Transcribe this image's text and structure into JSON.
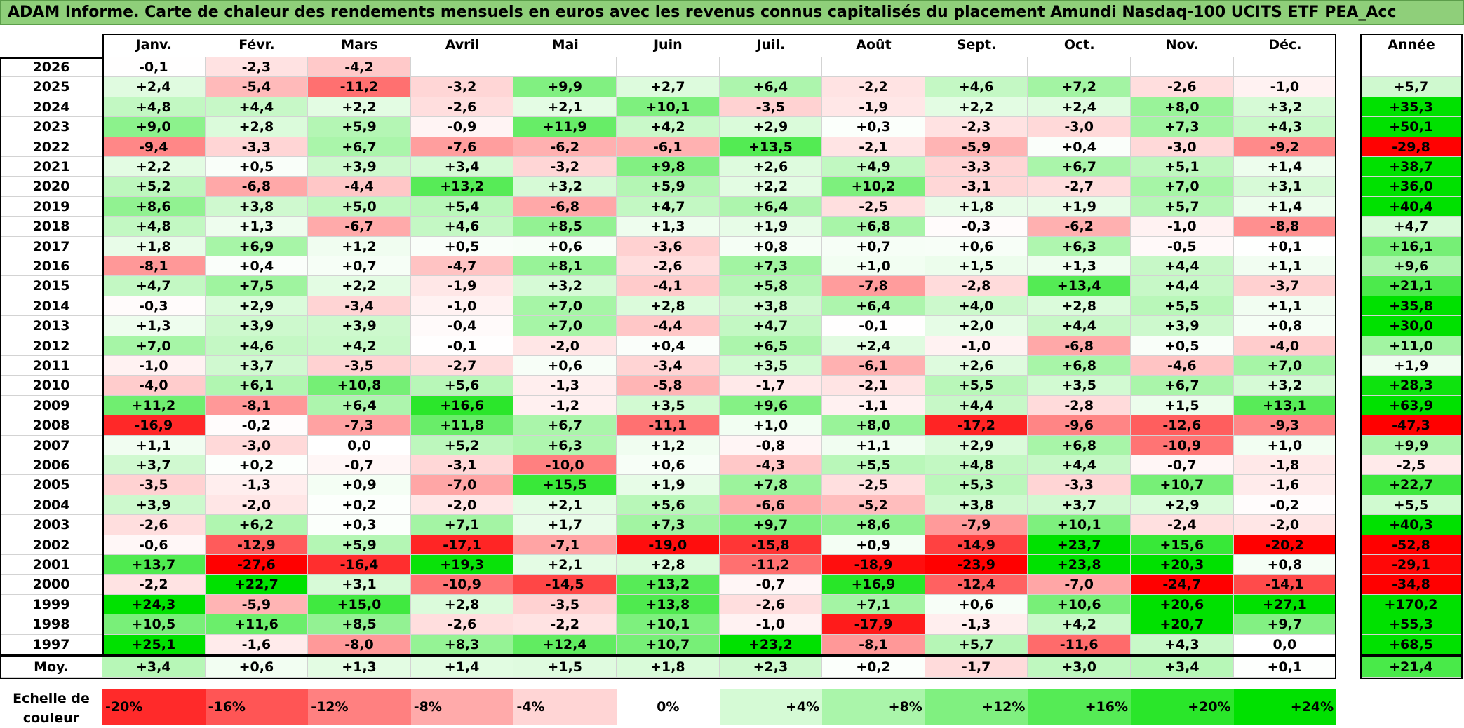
{
  "title": "ADAM Informe. Carte de chaleur des rendements mensuels en euros avec les revenus connus capitalisés du placement Amundi Nasdaq-100 UCITS ETF PEA_Acc",
  "chart_data": {
    "type": "heatmap",
    "months": [
      "Janv.",
      "Févr.",
      "Mars",
      "Avril",
      "Mai",
      "Juin",
      "Juil.",
      "Août",
      "Sept.",
      "Oct.",
      "Nov.",
      "Déc."
    ],
    "year_header": "Année",
    "rows": [
      {
        "year": "2026",
        "values": [
          "-0,1",
          "-2,3",
          "-4,2",
          "",
          "",
          "",
          "",
          "",
          "",
          "",
          "",
          ""
        ],
        "annual": ""
      },
      {
        "year": "2025",
        "values": [
          "+2,4",
          "-5,4",
          "-11,2",
          "-3,2",
          "+9,9",
          "+2,7",
          "+6,4",
          "-2,2",
          "+4,6",
          "+7,2",
          "-2,6",
          "-1,0"
        ],
        "annual": "+5,7"
      },
      {
        "year": "2024",
        "values": [
          "+4,8",
          "+4,4",
          "+2,2",
          "-2,6",
          "+2,1",
          "+10,1",
          "-3,5",
          "-1,9",
          "+2,2",
          "+2,4",
          "+8,0",
          "+3,2"
        ],
        "annual": "+35,3"
      },
      {
        "year": "2023",
        "values": [
          "+9,0",
          "+2,8",
          "+5,9",
          "-0,9",
          "+11,9",
          "+4,2",
          "+2,9",
          "+0,3",
          "-2,3",
          "-3,0",
          "+7,3",
          "+4,3"
        ],
        "annual": "+50,1"
      },
      {
        "year": "2022",
        "values": [
          "-9,4",
          "-3,3",
          "+6,7",
          "-7,6",
          "-6,2",
          "-6,1",
          "+13,5",
          "-2,1",
          "-5,9",
          "+0,4",
          "-3,0",
          "-9,2"
        ],
        "annual": "-29,8"
      },
      {
        "year": "2021",
        "values": [
          "+2,2",
          "+0,5",
          "+3,9",
          "+3,4",
          "-3,2",
          "+9,8",
          "+2,6",
          "+4,9",
          "-3,3",
          "+6,7",
          "+5,1",
          "+1,4"
        ],
        "annual": "+38,7"
      },
      {
        "year": "2020",
        "values": [
          "+5,2",
          "-6,8",
          "-4,4",
          "+13,2",
          "+3,2",
          "+5,9",
          "+2,2",
          "+10,2",
          "-3,1",
          "-2,7",
          "+7,0",
          "+3,1"
        ],
        "annual": "+36,0"
      },
      {
        "year": "2019",
        "values": [
          "+8,6",
          "+3,8",
          "+5,0",
          "+5,4",
          "-6,8",
          "+4,7",
          "+6,4",
          "-2,5",
          "+1,8",
          "+1,9",
          "+5,7",
          "+1,4"
        ],
        "annual": "+40,4"
      },
      {
        "year": "2018",
        "values": [
          "+4,8",
          "+1,3",
          "-6,7",
          "+4,6",
          "+8,5",
          "+1,3",
          "+1,9",
          "+6,8",
          "-0,3",
          "-6,2",
          "-1,0",
          "-8,8"
        ],
        "annual": "+4,7"
      },
      {
        "year": "2017",
        "values": [
          "+1,8",
          "+6,9",
          "+1,2",
          "+0,5",
          "+0,6",
          "-3,6",
          "+0,8",
          "+0,7",
          "+0,6",
          "+6,3",
          "-0,5",
          "+0,1"
        ],
        "annual": "+16,1"
      },
      {
        "year": "2016",
        "values": [
          "-8,1",
          "+0,4",
          "+0,7",
          "-4,7",
          "+8,1",
          "-2,6",
          "+7,3",
          "+1,0",
          "+1,5",
          "+1,3",
          "+4,4",
          "+1,1"
        ],
        "annual": "+9,6"
      },
      {
        "year": "2015",
        "values": [
          "+4,7",
          "+7,5",
          "+2,2",
          "-1,9",
          "+3,2",
          "-4,1",
          "+5,8",
          "-7,8",
          "-2,8",
          "+13,4",
          "+4,4",
          "-3,7"
        ],
        "annual": "+21,1"
      },
      {
        "year": "2014",
        "values": [
          "-0,3",
          "+2,9",
          "-3,4",
          "-1,0",
          "+7,0",
          "+2,8",
          "+3,8",
          "+6,4",
          "+4,0",
          "+2,8",
          "+5,5",
          "+1,1"
        ],
        "annual": "+35,8"
      },
      {
        "year": "2013",
        "values": [
          "+1,3",
          "+3,9",
          "+3,9",
          "-0,4",
          "+7,0",
          "-4,4",
          "+4,7",
          "-0,1",
          "+2,0",
          "+4,4",
          "+3,9",
          "+0,8"
        ],
        "annual": "+30,0"
      },
      {
        "year": "2012",
        "values": [
          "+7,0",
          "+4,6",
          "+4,2",
          "-0,1",
          "-2,0",
          "+0,4",
          "+6,5",
          "+2,4",
          "-1,0",
          "-6,8",
          "+0,5",
          "-4,0"
        ],
        "annual": "+11,0"
      },
      {
        "year": "2011",
        "values": [
          "-1,0",
          "+3,7",
          "-3,5",
          "-2,7",
          "+0,6",
          "-3,4",
          "+3,5",
          "-6,1",
          "+2,6",
          "+6,8",
          "-4,6",
          "+7,0"
        ],
        "annual": "+1,9"
      },
      {
        "year": "2010",
        "values": [
          "-4,0",
          "+6,1",
          "+10,8",
          "+5,6",
          "-1,3",
          "-5,8",
          "-1,7",
          "-2,1",
          "+5,5",
          "+3,5",
          "+6,7",
          "+3,2"
        ],
        "annual": "+28,3"
      },
      {
        "year": "2009",
        "values": [
          "+11,2",
          "-8,1",
          "+6,4",
          "+16,6",
          "-1,2",
          "+3,5",
          "+9,6",
          "-1,1",
          "+4,4",
          "-2,8",
          "+1,5",
          "+13,1"
        ],
        "annual": "+63,9"
      },
      {
        "year": "2008",
        "values": [
          "-16,9",
          "-0,2",
          "-7,3",
          "+11,8",
          "+6,7",
          "-11,1",
          "+1,0",
          "+8,0",
          "-17,2",
          "-9,6",
          "-12,6",
          "-9,3"
        ],
        "annual": "-47,3"
      },
      {
        "year": "2007",
        "values": [
          "+1,1",
          "-3,0",
          "0,0",
          "+5,2",
          "+6,3",
          "+1,2",
          "-0,8",
          "+1,1",
          "+2,9",
          "+6,8",
          "-10,9",
          "+1,0"
        ],
        "annual": "+9,9"
      },
      {
        "year": "2006",
        "values": [
          "+3,7",
          "+0,2",
          "-0,7",
          "-3,1",
          "-10,0",
          "+0,6",
          "-4,3",
          "+5,5",
          "+4,8",
          "+4,4",
          "-0,7",
          "-1,8"
        ],
        "annual": "-2,5"
      },
      {
        "year": "2005",
        "values": [
          "-3,5",
          "-1,3",
          "+0,9",
          "-7,0",
          "+15,5",
          "+1,9",
          "+7,8",
          "-2,5",
          "+5,3",
          "-3,3",
          "+10,7",
          "-1,6"
        ],
        "annual": "+22,7"
      },
      {
        "year": "2004",
        "values": [
          "+3,9",
          "-2,0",
          "+0,2",
          "-2,0",
          "+2,1",
          "+5,6",
          "-6,6",
          "-5,2",
          "+3,8",
          "+3,7",
          "+2,9",
          "-0,2"
        ],
        "annual": "+5,5"
      },
      {
        "year": "2003",
        "values": [
          "-2,6",
          "+6,2",
          "+0,3",
          "+7,1",
          "+1,7",
          "+7,3",
          "+9,7",
          "+8,6",
          "-7,9",
          "+10,1",
          "-2,4",
          "-2,0"
        ],
        "annual": "+40,3"
      },
      {
        "year": "2002",
        "values": [
          "-0,6",
          "-12,9",
          "+5,9",
          "-17,1",
          "-7,1",
          "-19,0",
          "-15,8",
          "+0,9",
          "-14,9",
          "+23,7",
          "+15,6",
          "-20,2"
        ],
        "annual": "-52,8"
      },
      {
        "year": "2001",
        "values": [
          "+13,7",
          "-27,6",
          "-16,4",
          "+19,3",
          "+2,1",
          "+2,8",
          "-11,2",
          "-18,9",
          "-23,9",
          "+23,8",
          "+20,3",
          "+0,8"
        ],
        "annual": "-29,1"
      },
      {
        "year": "2000",
        "values": [
          "-2,2",
          "+22,7",
          "+3,1",
          "-10,9",
          "-14,5",
          "+13,2",
          "-0,7",
          "+16,9",
          "-12,4",
          "-7,0",
          "-24,7",
          "-14,1"
        ],
        "annual": "-34,8"
      },
      {
        "year": "1999",
        "values": [
          "+24,3",
          "-5,9",
          "+15,0",
          "+2,8",
          "-3,5",
          "+13,8",
          "-2,6",
          "+7,1",
          "+0,6",
          "+10,6",
          "+20,6",
          "+27,1"
        ],
        "annual": "+170,2"
      },
      {
        "year": "1998",
        "values": [
          "+10,5",
          "+11,6",
          "+8,5",
          "-2,6",
          "-2,2",
          "+10,1",
          "-1,0",
          "-17,9",
          "-1,3",
          "+4,2",
          "+20,7",
          "+9,7"
        ],
        "annual": "+55,3"
      },
      {
        "year": "1997",
        "values": [
          "+25,1",
          "-1,6",
          "-8,0",
          "+8,3",
          "+12,4",
          "+10,7",
          "+23,2",
          "-8,1",
          "+5,7",
          "-11,6",
          "+4,3",
          "0,0"
        ],
        "annual": "+68,5"
      }
    ],
    "average": {
      "label": "Moy.",
      "values": [
        "+3,4",
        "+0,6",
        "+1,3",
        "+1,4",
        "+1,5",
        "+1,8",
        "+2,3",
        "+0,2",
        "-1,7",
        "+3,0",
        "+3,4",
        "+0,1"
      ],
      "annual": "+21,4"
    },
    "scale": {
      "label_line1": "Echelle de",
      "label_line2": "couleur",
      "stops": [
        "-20%",
        "-16%",
        "-12%",
        "-8%",
        "-4%",
        "0%",
        "+4%",
        "+8%",
        "+12%",
        "+16%",
        "+20%",
        "+24%"
      ]
    },
    "colors": {
      "negative_max": "#ff0000",
      "neutral": "#ffffff",
      "positive_max": "#00e000"
    }
  }
}
